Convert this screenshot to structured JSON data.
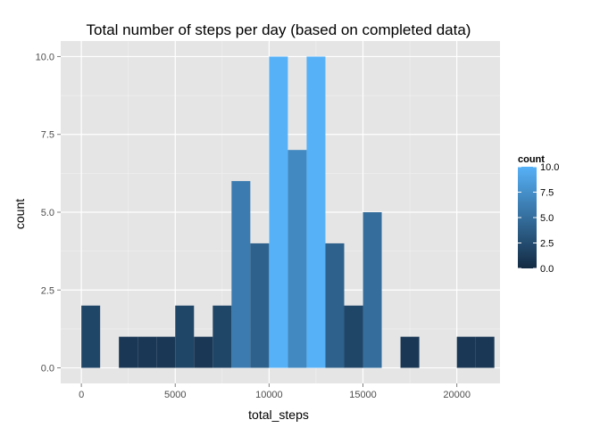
{
  "chart_data": {
    "type": "bar",
    "title": "Total number of steps per day (based on completed data)",
    "xlabel": "total_steps",
    "ylabel": "count",
    "xlim": [
      -1100,
      22300
    ],
    "ylim": [
      -0.5,
      10.5
    ],
    "x_ticks": [
      0,
      5000,
      10000,
      15000,
      20000
    ],
    "x_tick_labels": [
      "0",
      "5000",
      "10000",
      "15000",
      "20000"
    ],
    "y_ticks": [
      0,
      2.5,
      5,
      7.5,
      10
    ],
    "y_tick_labels": [
      "0.0",
      "2.5",
      "5.0",
      "7.5",
      "10.0"
    ],
    "bins": [
      {
        "x0": 0,
        "x1": 1000,
        "count": 2
      },
      {
        "x0": 1000,
        "x1": 2000,
        "count": 0
      },
      {
        "x0": 2000,
        "x1": 3000,
        "count": 1
      },
      {
        "x0": 3000,
        "x1": 4000,
        "count": 1
      },
      {
        "x0": 4000,
        "x1": 5000,
        "count": 1
      },
      {
        "x0": 5000,
        "x1": 6000,
        "count": 2
      },
      {
        "x0": 6000,
        "x1": 7000,
        "count": 1
      },
      {
        "x0": 7000,
        "x1": 8000,
        "count": 2
      },
      {
        "x0": 8000,
        "x1": 9000,
        "count": 6
      },
      {
        "x0": 9000,
        "x1": 10000,
        "count": 4
      },
      {
        "x0": 10000,
        "x1": 11000,
        "count": 10
      },
      {
        "x0": 11000,
        "x1": 12000,
        "count": 7
      },
      {
        "x0": 12000,
        "x1": 13000,
        "count": 10
      },
      {
        "x0": 13000,
        "x1": 14000,
        "count": 4
      },
      {
        "x0": 14000,
        "x1": 15000,
        "count": 2
      },
      {
        "x0": 15000,
        "x1": 16000,
        "count": 5
      },
      {
        "x0": 16000,
        "x1": 17000,
        "count": 0
      },
      {
        "x0": 17000,
        "x1": 18000,
        "count": 1
      },
      {
        "x0": 18000,
        "x1": 19000,
        "count": 0
      },
      {
        "x0": 19000,
        "x1": 20000,
        "count": 0
      },
      {
        "x0": 20000,
        "x1": 21000,
        "count": 1
      },
      {
        "x0": 21000,
        "x1": 22000,
        "count": 1
      }
    ],
    "grid": true,
    "legend": {
      "title": "count",
      "position": "right",
      "ticks": [
        0,
        2.5,
        5,
        7.5,
        10
      ],
      "labels": [
        "0.0",
        "2.5",
        "5.0",
        "7.5",
        "10.0"
      ],
      "color_low": "#132B43",
      "color_high": "#56B1F7"
    },
    "colors": {
      "panel_background": "#e5e5e5",
      "grid_major": "#ffffff",
      "grid_minor": "#f2f2f2"
    }
  }
}
